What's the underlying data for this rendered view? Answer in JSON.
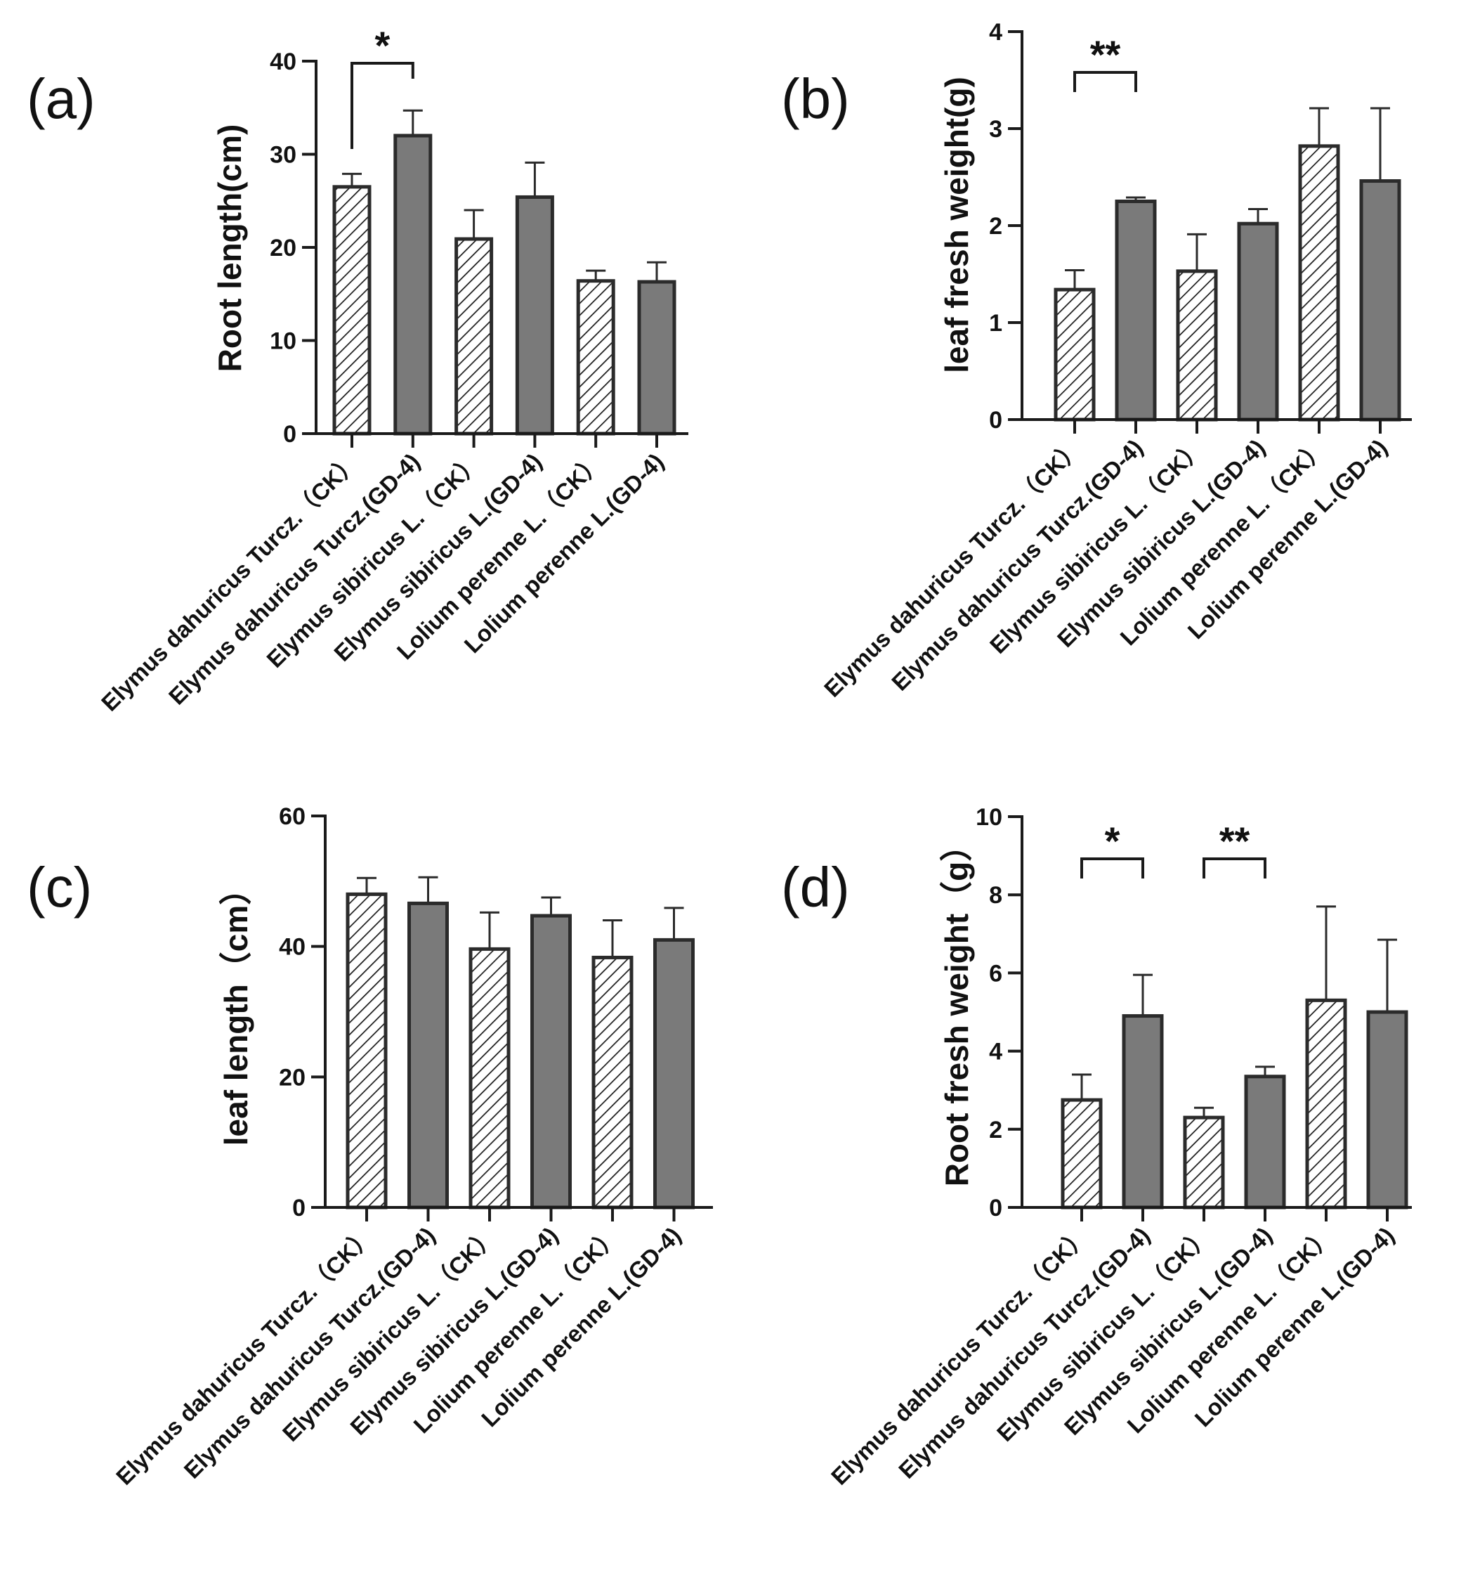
{
  "chart_data": [
    {
      "id": "a",
      "type": "bar",
      "panel_label": "(a)",
      "title": "",
      "xlabel": "",
      "ylabel": "Root length(cm)",
      "ylim": [
        0,
        40
      ],
      "yticks": [
        0,
        10,
        20,
        30,
        40
      ],
      "tick_labels": [
        "0",
        "10",
        "20",
        "30",
        "40"
      ],
      "categories": [
        "Elymus dahuricus Turcz.（CK）",
        "Elymus dahuricus Turcz.(GD-4)",
        "Elymus sibiricus L.（CK）",
        "Elymus sibiricus L.(GD-4)",
        "Lolium perenne L.（CK）",
        "Lolium perenne L.(GD-4)"
      ],
      "values": [
        26.5,
        32.0,
        20.9,
        25.4,
        16.4,
        16.3
      ],
      "errors": [
        1.4,
        2.7,
        3.1,
        3.7,
        1.1,
        2.1
      ],
      "fills": [
        "hatch",
        "solid",
        "hatch",
        "solid",
        "hatch",
        "solid"
      ],
      "significance": [
        {
          "from": 0,
          "to": 1,
          "label": "*"
        }
      ],
      "grid": false
    },
    {
      "id": "b",
      "type": "bar",
      "panel_label": "(b)",
      "title": "",
      "xlabel": "",
      "ylabel": "leaf fresh weight(g)",
      "ylim": [
        0,
        4
      ],
      "yticks": [
        0,
        1,
        2,
        3,
        4
      ],
      "tick_labels": [
        "0",
        "1",
        "2",
        "3",
        "4"
      ],
      "categories": [
        "Elymus dahuricus Turcz.（CK）",
        "Elymus dahuricus Turcz.(GD-4)",
        "Elymus sibiricus L.（CK）",
        "Elymus sibiricus L.(GD-4)",
        "Lolium perenne L.（CK）",
        "Lolium perenne L.(GD-4)"
      ],
      "values": [
        1.34,
        2.25,
        1.53,
        2.02,
        2.82,
        2.46
      ],
      "errors": [
        0.2,
        0.04,
        0.38,
        0.15,
        0.39,
        0.75
      ],
      "fills": [
        "hatch",
        "solid",
        "hatch",
        "solid",
        "hatch",
        "solid"
      ],
      "significance": [
        {
          "from": 0,
          "to": 1,
          "label": "**"
        }
      ],
      "grid": false
    },
    {
      "id": "c",
      "type": "bar",
      "panel_label": "(c)",
      "title": "",
      "xlabel": "",
      "ylabel": "leaf length（cm）",
      "ylim": [
        0,
        60
      ],
      "yticks": [
        0,
        20,
        40,
        60
      ],
      "tick_labels": [
        "0",
        "20",
        "40",
        "60"
      ],
      "categories": [
        "Elymus dahuricus Turcz.（CK）",
        "Elymus dahuricus Turcz.(GD-4)",
        "Elymus sibiricus L.（CK）",
        "Elymus sibiricus L.(GD-4)",
        "Lolium perenne L.（CK）",
        "Lolium perenne L.(GD-4)"
      ],
      "values": [
        48.0,
        46.6,
        39.6,
        44.7,
        38.3,
        41.0
      ],
      "errors": [
        2.5,
        4.0,
        5.6,
        2.8,
        5.7,
        4.9
      ],
      "fills": [
        "hatch",
        "solid",
        "hatch",
        "solid",
        "hatch",
        "solid"
      ],
      "significance": [],
      "grid": false
    },
    {
      "id": "d",
      "type": "bar",
      "panel_label": "(d)",
      "title": "",
      "xlabel": "",
      "ylabel": "Root fresh weight（g）",
      "ylim": [
        0,
        10
      ],
      "yticks": [
        0,
        2,
        4,
        6,
        8,
        10
      ],
      "tick_labels": [
        "0",
        "2",
        "4",
        "6",
        "8",
        "10"
      ],
      "categories": [
        "Elymus dahuricus Turcz.（CK）",
        "Elymus dahuricus Turcz.(GD-4)",
        "Elymus sibiricus L.（CK）",
        "Elymus sibiricus L.(GD-4)",
        "Lolium perenne L.（CK）",
        "Lolium perenne L.(GD-4)"
      ],
      "values": [
        2.75,
        4.9,
        2.3,
        3.35,
        5.3,
        5.0
      ],
      "errors": [
        0.65,
        1.05,
        0.25,
        0.25,
        2.4,
        1.85
      ],
      "fills": [
        "hatch",
        "solid",
        "hatch",
        "solid",
        "hatch",
        "solid"
      ],
      "significance": [
        {
          "from": 0,
          "to": 1,
          "label": "*"
        },
        {
          "from": 2,
          "to": 3,
          "label": "**"
        }
      ],
      "grid": false
    }
  ],
  "colors": {
    "bar_fill": "#7a7a7a",
    "bar_stroke": "#2b2b2b",
    "hatch_stroke": "#1a1a1a",
    "axis": "#1a1a1a",
    "text": "#111111"
  }
}
